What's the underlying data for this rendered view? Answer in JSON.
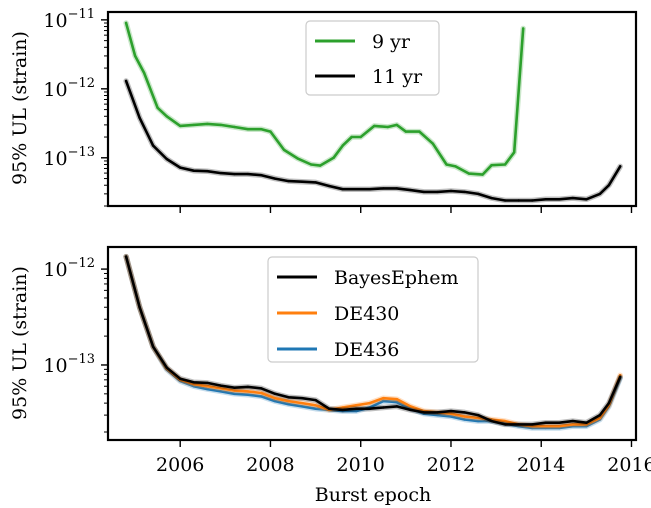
{
  "chart_data": [
    {
      "type": "line",
      "title": "",
      "xlabel": "",
      "ylabel": "95% UL (strain)",
      "yscale": "log",
      "ylim": [
        2e-14,
        1.3e-11
      ],
      "xlim": [
        2004.4,
        2016.1
      ],
      "x_ticks": [
        2006,
        2008,
        2010,
        2012,
        2014,
        2016
      ],
      "y_ticks": [
        {
          "value": 1e-13,
          "base": "10",
          "exp": "−13"
        },
        {
          "value": 1e-12,
          "base": "10",
          "exp": "−12"
        },
        {
          "value": 1e-11,
          "base": "10",
          "exp": "−11"
        }
      ],
      "legend": {
        "placement": "top-center"
      },
      "series": [
        {
          "name": "11 yr",
          "color": "#000000",
          "x": [
            2004.8,
            2005.1,
            2005.4,
            2005.7,
            2006.0,
            2006.3,
            2006.6,
            2006.9,
            2007.2,
            2007.5,
            2007.8,
            2008.1,
            2008.4,
            2008.7,
            2009.0,
            2009.3,
            2009.6,
            2009.9,
            2010.2,
            2010.5,
            2010.8,
            2011.1,
            2011.4,
            2011.7,
            2012.0,
            2012.3,
            2012.6,
            2012.9,
            2013.2,
            2013.5,
            2013.8,
            2014.1,
            2014.4,
            2014.7,
            2015.0,
            2015.3,
            2015.5,
            2015.75
          ],
          "values": [
            1.3e-12,
            3.8e-13,
            1.5e-13,
            9.6e-14,
            7.2e-14,
            6.5e-14,
            6.4e-14,
            6e-14,
            5.8e-14,
            5.8e-14,
            5.6e-14,
            5e-14,
            4.6e-14,
            4.5e-14,
            4.4e-14,
            3.9e-14,
            3.5e-14,
            3.5e-14,
            3.5e-14,
            3.6e-14,
            3.6e-14,
            3.4e-14,
            3.2e-14,
            3.2e-14,
            3.3e-14,
            3.2e-14,
            3e-14,
            2.6e-14,
            2.4e-14,
            2.4e-14,
            2.4e-14,
            2.5e-14,
            2.5e-14,
            2.6e-14,
            2.5e-14,
            3e-14,
            4e-14,
            7.5e-14
          ]
        },
        {
          "name": "9 yr",
          "color": "#2ca02c",
          "x": [
            2004.8,
            2005.0,
            2005.2,
            2005.5,
            2005.7,
            2006.0,
            2006.3,
            2006.6,
            2006.9,
            2007.2,
            2007.5,
            2007.8,
            2008.0,
            2008.3,
            2008.6,
            2008.9,
            2009.1,
            2009.4,
            2009.6,
            2009.8,
            2010.0,
            2010.3,
            2010.6,
            2010.8,
            2011.0,
            2011.3,
            2011.6,
            2011.9,
            2012.1,
            2012.4,
            2012.7,
            2012.9,
            2013.2,
            2013.4,
            2013.6
          ],
          "values": [
            9e-12,
            3e-12,
            1.7e-12,
            5.3e-13,
            4e-13,
            2.9e-13,
            3e-13,
            3.1e-13,
            3e-13,
            2.8e-13,
            2.6e-13,
            2.6e-13,
            2.4e-13,
            1.3e-13,
            9.8e-14,
            8e-14,
            7.7e-14,
            1e-13,
            1.5e-13,
            2e-13,
            2e-13,
            2.9e-13,
            2.8e-13,
            3e-13,
            2.4e-13,
            2.4e-13,
            1.6e-13,
            8e-14,
            7.5e-14,
            5.9e-14,
            5.7e-14,
            7.8e-14,
            8e-14,
            1.2e-13,
            7.5e-12
          ]
        }
      ]
    },
    {
      "type": "line",
      "title": "",
      "xlabel": "Burst epoch",
      "ylabel": "95% UL (strain)",
      "yscale": "log",
      "ylim": [
        1.65e-14,
        1.7e-12
      ],
      "xlim": [
        2004.4,
        2016.1
      ],
      "x_ticks": [
        2006,
        2008,
        2010,
        2012,
        2014,
        2016
      ],
      "x_tick_labels": [
        "2006",
        "2008",
        "2010",
        "2012",
        "2014",
        "2016"
      ],
      "y_ticks": [
        {
          "value": 1e-13,
          "base": "10",
          "exp": "−13"
        },
        {
          "value": 1e-12,
          "base": "10",
          "exp": "−12"
        }
      ],
      "legend": {
        "placement": "top-center"
      },
      "series": [
        {
          "name": "DE436",
          "color": "#1f77b4",
          "x": [
            2004.8,
            2005.1,
            2005.4,
            2005.7,
            2006.0,
            2006.3,
            2006.6,
            2006.9,
            2007.2,
            2007.5,
            2007.8,
            2008.1,
            2008.4,
            2008.7,
            2009.0,
            2009.3,
            2009.6,
            2009.9,
            2010.2,
            2010.5,
            2010.8,
            2011.1,
            2011.4,
            2011.7,
            2012.0,
            2012.3,
            2012.6,
            2012.9,
            2013.2,
            2013.5,
            2013.8,
            2014.1,
            2014.4,
            2014.7,
            2015.0,
            2015.3,
            2015.5,
            2015.75
          ],
          "values": [
            1.35e-12,
            4e-13,
            1.55e-13,
            9e-14,
            6.8e-14,
            6e-14,
            5.6e-14,
            5.3e-14,
            5e-14,
            4.9e-14,
            4.7e-14,
            4.2e-14,
            3.9e-14,
            3.7e-14,
            3.5e-14,
            3.4e-14,
            3.3e-14,
            3.3e-14,
            3.6e-14,
            4.2e-14,
            4.1e-14,
            3.5e-14,
            3.1e-14,
            3e-14,
            2.9e-14,
            2.7e-14,
            2.6e-14,
            2.6e-14,
            2.45e-14,
            2.3e-14,
            2.2e-14,
            2.2e-14,
            2.2e-14,
            2.3e-14,
            2.3e-14,
            2.7e-14,
            3.7e-14,
            7.3e-14
          ]
        },
        {
          "name": "DE430",
          "color": "#ff7f0e",
          "x": [
            2004.8,
            2005.1,
            2005.4,
            2005.7,
            2006.0,
            2006.3,
            2006.6,
            2006.9,
            2007.2,
            2007.5,
            2007.8,
            2008.1,
            2008.4,
            2008.7,
            2009.0,
            2009.3,
            2009.6,
            2009.9,
            2010.2,
            2010.5,
            2010.8,
            2011.1,
            2011.4,
            2011.7,
            2012.0,
            2012.3,
            2012.6,
            2012.9,
            2013.2,
            2013.5,
            2013.8,
            2014.1,
            2014.4,
            2014.7,
            2015.0,
            2015.3,
            2015.5,
            2015.75
          ],
          "values": [
            1.35e-12,
            4e-13,
            1.55e-13,
            9.2e-14,
            7e-14,
            6.3e-14,
            6e-14,
            5.7e-14,
            5.4e-14,
            5.3e-14,
            5.1e-14,
            4.5e-14,
            4.2e-14,
            4e-14,
            3.8e-14,
            3.4e-14,
            3.6e-14,
            3.8e-14,
            4e-14,
            4.5e-14,
            4.4e-14,
            3.7e-14,
            3.3e-14,
            3.2e-14,
            3.1e-14,
            2.9e-14,
            2.8e-14,
            2.7e-14,
            2.6e-14,
            2.4e-14,
            2.3e-14,
            2.3e-14,
            2.3e-14,
            2.4e-14,
            2.4e-14,
            2.8e-14,
            3.8e-14,
            7.8e-14
          ]
        },
        {
          "name": "BayesEphem",
          "color": "#000000",
          "x": [
            2004.8,
            2005.1,
            2005.4,
            2005.7,
            2006.0,
            2006.3,
            2006.6,
            2006.9,
            2007.2,
            2007.5,
            2007.8,
            2008.1,
            2008.4,
            2008.7,
            2009.0,
            2009.3,
            2009.6,
            2009.9,
            2010.2,
            2010.5,
            2010.8,
            2011.1,
            2011.4,
            2011.7,
            2012.0,
            2012.3,
            2012.6,
            2012.9,
            2013.2,
            2013.5,
            2013.8,
            2014.1,
            2014.4,
            2014.7,
            2015.0,
            2015.3,
            2015.5,
            2015.75
          ],
          "values": [
            1.35e-12,
            4e-13,
            1.55e-13,
            9.4e-14,
            7.2e-14,
            6.6e-14,
            6.5e-14,
            6.1e-14,
            5.8e-14,
            5.9e-14,
            5.7e-14,
            5e-14,
            4.6e-14,
            4.5e-14,
            4.3e-14,
            3.5e-14,
            3.4e-14,
            3.5e-14,
            3.5e-14,
            3.6e-14,
            3.7e-14,
            3.4e-14,
            3.2e-14,
            3.2e-14,
            3.3e-14,
            3.2e-14,
            3e-14,
            2.6e-14,
            2.4e-14,
            2.4e-14,
            2.4e-14,
            2.5e-14,
            2.5e-14,
            2.6e-14,
            2.5e-14,
            3e-14,
            4e-14,
            7.5e-14
          ]
        }
      ]
    }
  ]
}
